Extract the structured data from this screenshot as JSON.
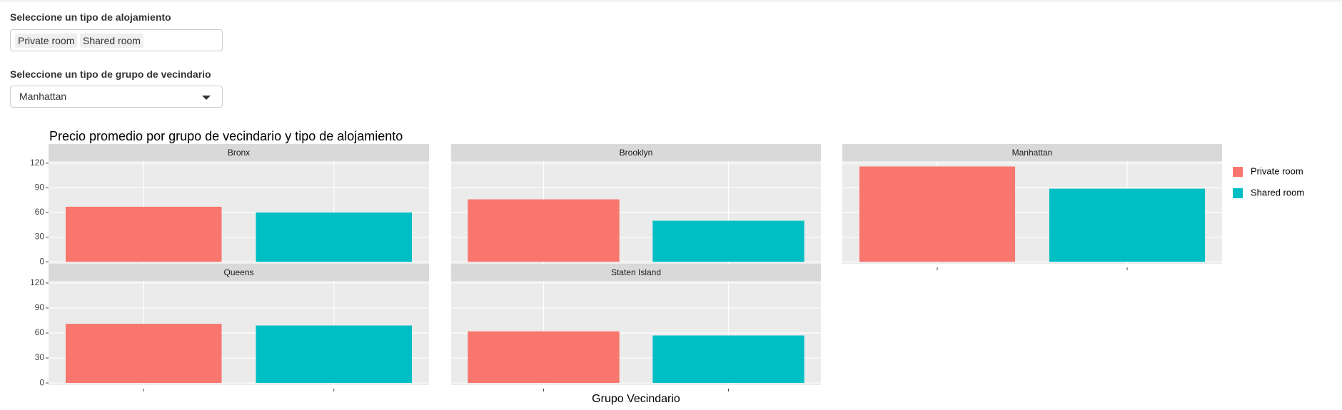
{
  "controls": {
    "room_label": "Seleccione un tipo de alojamiento",
    "room_selected": [
      "Private room",
      "Shared room"
    ],
    "group_label": "Seleccione un tipo de grupo de vecindario",
    "group_selected": "Manhattan"
  },
  "chart_data": {
    "type": "bar",
    "title": "Precio promedio por grupo de vecindario y tipo de alojamiento",
    "x_label": "Grupo Vecindario",
    "facets": [
      "Bronx",
      "Brooklyn",
      "Manhattan",
      "Queens",
      "Staten Island"
    ],
    "series": [
      {
        "name": "Private room",
        "color": "#F8766D",
        "values": [
          67,
          76,
          116,
          71,
          62
        ]
      },
      {
        "name": "Shared room",
        "color": "#00BFC4",
        "values": [
          60,
          50,
          89,
          69,
          57
        ]
      }
    ],
    "ylim": [
      -2.5,
      122.5
    ],
    "yticks": [
      0,
      30,
      60,
      90,
      120
    ],
    "grid": true,
    "legend": "right"
  }
}
